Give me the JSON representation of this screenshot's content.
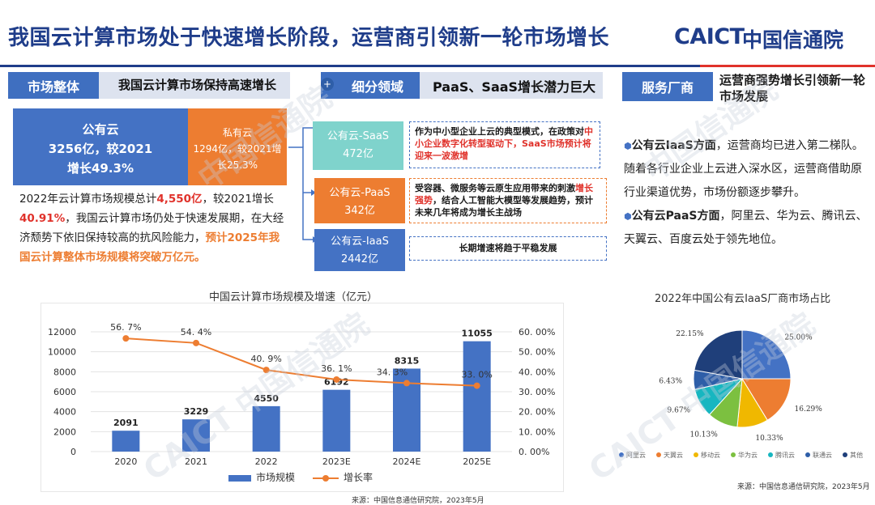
{
  "header": {
    "title": "我国云计算市场处于快速增长阶段，运营商引领新一轮市场增长",
    "logo_latin": "CAICT",
    "logo_cn": "中国信通院"
  },
  "left": {
    "tab": "市场整体",
    "heading": "我国云计算市场保持高速增长",
    "public": {
      "l1": "公有云",
      "l2": "3256亿，较2021",
      "l3": "增长49.3%"
    },
    "private": {
      "l1": "私有云",
      "l2": "1294亿，较2021增",
      "l3": "长25.3%"
    },
    "para": {
      "a": "2022年云计算市场规模总计",
      "b": "4,550亿",
      "c": "，较2021增长",
      "d": "40.91%",
      "e": "，我国云计算市场仍处于快速发展期，在大经济颓势下依旧保持较高的抗风险能力，",
      "f": "预计2025年我国云计算整体市场规模将突破万亿元。"
    }
  },
  "middle": {
    "tab": "细分领域",
    "heading": "PaaS、SaaS增长潜力巨大",
    "saas": {
      "name": "公有云-SaaS",
      "value": "472亿"
    },
    "paas": {
      "name": "公有云-PaaS",
      "value": "342亿"
    },
    "iaas": {
      "name": "公有云-IaaS",
      "value": "2442亿"
    },
    "saas_note": {
      "a": "作为中小型企业上云的典型模式，在政策对",
      "b": "中小企业数字化转型驱动下，SaaS市场预计将迎来一波激增"
    },
    "paas_note": {
      "a": "受容器、微服务等云原生应用带来的刺激",
      "b": "增长强势",
      "c": "，结合人工智能大模型等发展趋势，预计未来几年将成为增长主战场"
    },
    "iaas_note": "长期增速将趋于平稳发展"
  },
  "right": {
    "tab": "服务厂商",
    "heading": "运营商强势增长引领新一轮市场发展",
    "p1_head": "公有云IaaS方面",
    "p1_body": "，运营商均已进入第二梯队。随着各行业企业上云进入深水区，运营商借助原行业渠道优势，市场份额逐步攀升。",
    "p2_head": "公有云PaaS方面",
    "p2_body": "，阿里云、华为云、腾讯云、天翼云、百度云处于领先地位。"
  },
  "chart_data": [
    {
      "type": "bar",
      "title": "中国云计算市场规模及增速（亿元）",
      "categories": [
        "2020",
        "2021",
        "2022",
        "2023E",
        "2024E",
        "2025E"
      ],
      "series": [
        {
          "name": "市场规模",
          "type": "bar",
          "values": [
            2091,
            3229,
            4550,
            6192,
            8315,
            11055
          ],
          "color": "#4472c4"
        },
        {
          "name": "增长率",
          "type": "line",
          "values": [
            56.7,
            54.4,
            40.9,
            36.1,
            34.3,
            33.0
          ],
          "labels": [
            "56. 7%",
            "54. 4%",
            "40. 9%",
            "36. 1%",
            "34. 3%",
            "33. 0%"
          ],
          "color": "#ed7d31",
          "axis": "right"
        }
      ],
      "value_labels": [
        "2091",
        "3229",
        "4550",
        "6192",
        "8315",
        "11055"
      ],
      "ylim": [
        0,
        12000
      ],
      "yticks": [
        "0",
        "2000",
        "4000",
        "6000",
        "8000",
        "10000",
        "12000"
      ],
      "y2lim": [
        0,
        60
      ],
      "y2ticks": [
        "0. 00%",
        "10. 00%",
        "20. 00%",
        "30. 00%",
        "40. 00%",
        "50. 00%",
        "60. 00%"
      ],
      "grid": true,
      "legend": "bottom",
      "source": "来源：中国信息通信研究院，2023年5月"
    },
    {
      "type": "pie",
      "title": "2022年中国公有云IaaS厂商市场占比",
      "labels": [
        "阿里云",
        "天翼云",
        "移动云",
        "华为云",
        "腾讯云",
        "联通云",
        "其他"
      ],
      "values": [
        25.0,
        16.29,
        10.33,
        10.13,
        9.67,
        6.43,
        22.15
      ],
      "value_labels": [
        "25.00%",
        "16.29%",
        "10.33%",
        "10.13%",
        "9.67%",
        "6.43%",
        "22.15%"
      ],
      "colors": [
        "#4472c4",
        "#ed7d31",
        "#f0b800",
        "#7cc040",
        "#17b6c0",
        "#2e5ea8",
        "#1f3f7a"
      ],
      "legend": "bottom",
      "source": "来源：中国信息通信研究院，2023年5月"
    }
  ]
}
